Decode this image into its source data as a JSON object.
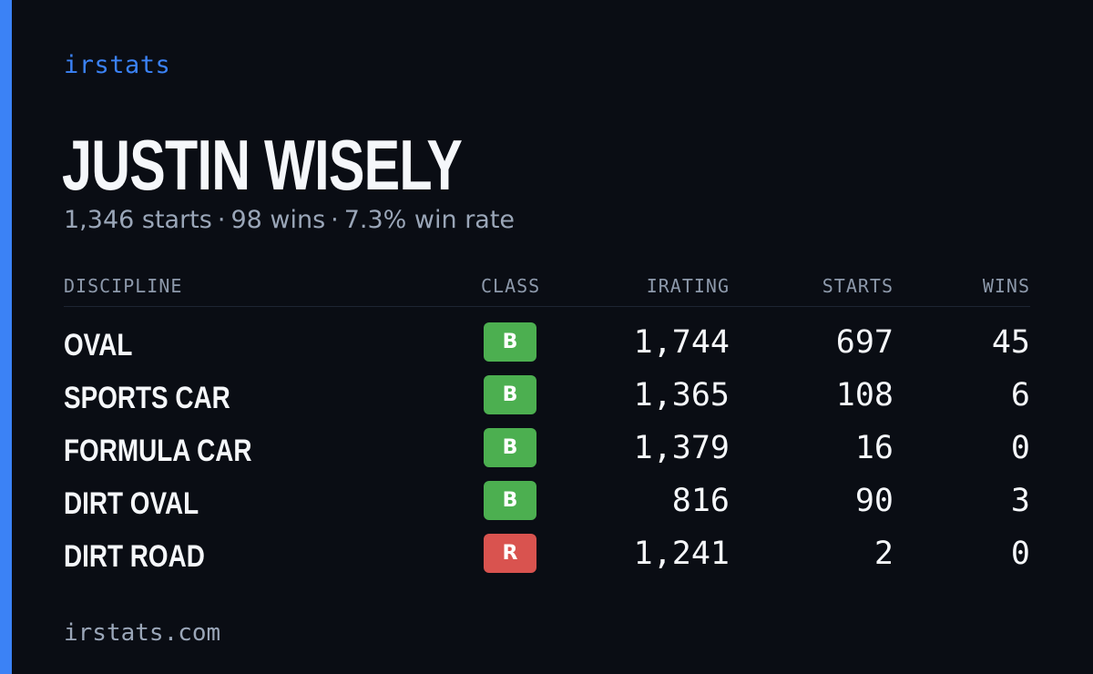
{
  "brand": "irstats",
  "player": {
    "name": "JUSTIN WISELY",
    "starts_text": "1,346 starts",
    "wins_text": "98 wins",
    "win_rate_text": "7.3% win rate",
    "separator": "·"
  },
  "table": {
    "headers": {
      "discipline": "DISCIPLINE",
      "class": "CLASS",
      "irating": "IRATING",
      "starts": "STARTS",
      "wins": "WINS"
    },
    "rows": [
      {
        "discipline": "OVAL",
        "class": "B",
        "class_color": "#4caf50",
        "irating": "1,744",
        "starts": "697",
        "wins": "45"
      },
      {
        "discipline": "SPORTS CAR",
        "class": "B",
        "class_color": "#4caf50",
        "irating": "1,365",
        "starts": "108",
        "wins": "6"
      },
      {
        "discipline": "FORMULA CAR",
        "class": "B",
        "class_color": "#4caf50",
        "irating": "1,379",
        "starts": "16",
        "wins": "0"
      },
      {
        "discipline": "DIRT OVAL",
        "class": "B",
        "class_color": "#4caf50",
        "irating": "816",
        "starts": "90",
        "wins": "3"
      },
      {
        "discipline": "DIRT ROAD",
        "class": "R",
        "class_color": "#d9534f",
        "irating": "1,241",
        "starts": "2",
        "wins": "0"
      }
    ]
  },
  "footer": "irstats.com",
  "colors": {
    "background": "#0a0d14",
    "accent": "#3b82f6",
    "muted_text": "#9aa6b8",
    "class_b": "#4caf50",
    "class_r": "#d9534f"
  }
}
